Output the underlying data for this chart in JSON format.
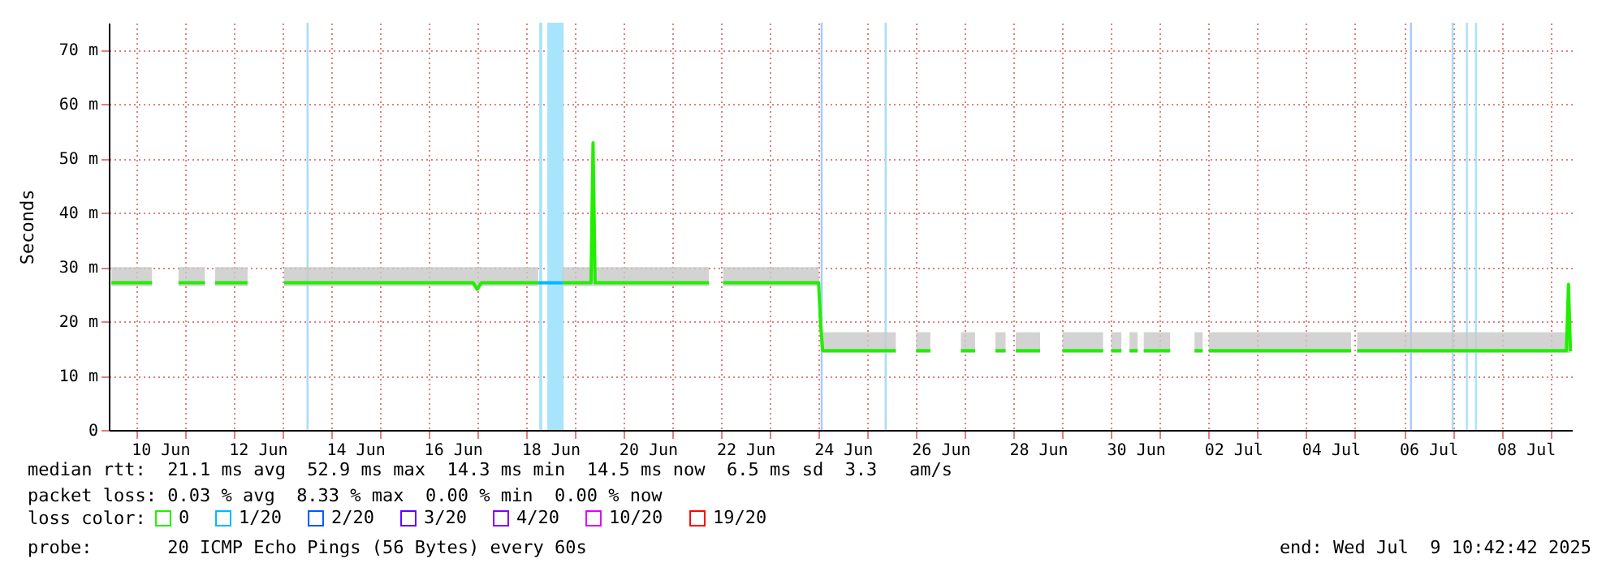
{
  "chart_data": {
    "type": "line",
    "ylabel": "Seconds",
    "legend_title": "loss color:",
    "legend": "bottom",
    "grid": true,
    "xlim": [
      "2025-06-09T10:42",
      "2025-07-09T10:42"
    ],
    "ylim": [
      0,
      75
    ],
    "yticks": [
      0,
      {
        "value": 10,
        "label": "10 m"
      },
      {
        "value": 20,
        "label": "20 m"
      },
      {
        "value": 30,
        "label": "30 m"
      },
      {
        "value": 40,
        "label": "40 m"
      },
      {
        "value": 50,
        "label": "50 m"
      },
      {
        "value": 60,
        "label": "60 m"
      },
      {
        "value": 70,
        "label": "70 m"
      }
    ],
    "xticks": [
      {
        "value": "2025-06-10T12:00",
        "label": "10 Jun"
      },
      {
        "value": "2025-06-12T12:00",
        "label": "12 Jun"
      },
      {
        "value": "2025-06-14T12:00",
        "label": "14 Jun"
      },
      {
        "value": "2025-06-16T12:00",
        "label": "16 Jun"
      },
      {
        "value": "2025-06-18T12:00",
        "label": "18 Jun"
      },
      {
        "value": "2025-06-20T12:00",
        "label": "20 Jun"
      },
      {
        "value": "2025-06-22T12:00",
        "label": "22 Jun"
      },
      {
        "value": "2025-06-24T12:00",
        "label": "24 Jun"
      },
      {
        "value": "2025-06-26T12:00",
        "label": "26 Jun"
      },
      {
        "value": "2025-06-28T12:00",
        "label": "28 Jun"
      },
      {
        "value": "2025-06-30T12:00",
        "label": "30 Jun"
      },
      {
        "value": "2025-07-02T12:00",
        "label": "02 Jul"
      },
      {
        "value": "2025-07-04T12:00",
        "label": "04 Jul"
      },
      {
        "value": "2025-07-06T12:00",
        "label": "06 Jul"
      },
      {
        "value": "2025-07-08T12:00",
        "label": "08 Jul"
      },
      {
        "value": "2025-06-10T00:00",
        "label": null
      },
      {
        "value": "2025-06-11T00:00",
        "label": null
      },
      {
        "value": "2025-06-12T00:00",
        "label": null
      },
      {
        "value": "2025-06-13T00:00",
        "label": null
      },
      {
        "value": "2025-06-14T00:00",
        "label": null
      },
      {
        "value": "2025-06-15T00:00",
        "label": null
      },
      {
        "value": "2025-06-16T00:00",
        "label": null
      },
      {
        "value": "2025-06-17T00:00",
        "label": null
      },
      {
        "value": "2025-06-18T00:00",
        "label": null
      },
      {
        "value": "2025-06-19T00:00",
        "label": null
      },
      {
        "value": "2025-06-20T00:00",
        "label": null
      },
      {
        "value": "2025-06-21T00:00",
        "label": null
      },
      {
        "value": "2025-06-22T00:00",
        "label": null
      },
      {
        "value": "2025-06-23T00:00",
        "label": null
      },
      {
        "value": "2025-06-24T00:00",
        "label": null
      },
      {
        "value": "2025-06-25T00:00",
        "label": null
      },
      {
        "value": "2025-06-26T00:00",
        "label": null
      },
      {
        "value": "2025-06-27T00:00",
        "label": null
      },
      {
        "value": "2025-06-28T00:00",
        "label": null
      },
      {
        "value": "2025-06-29T00:00",
        "label": null
      },
      {
        "value": "2025-06-30T00:00",
        "label": null
      },
      {
        "value": "2025-07-01T00:00",
        "label": null
      },
      {
        "value": "2025-07-02T00:00",
        "label": null
      },
      {
        "value": "2025-07-03T00:00",
        "label": null
      },
      {
        "value": "2025-07-04T00:00",
        "label": null
      },
      {
        "value": "2025-07-05T00:00",
        "label": null
      },
      {
        "value": "2025-07-06T00:00",
        "label": null
      },
      {
        "value": "2025-07-07T00:00",
        "label": null
      },
      {
        "value": "2025-07-08T00:00",
        "label": null
      },
      {
        "value": "2025-07-09T00:00",
        "label": null
      }
    ],
    "bands": [
      {
        "axis": "x",
        "from": "2025-06-13T12:00",
        "to": "2025-06-13T13:00",
        "color": "#a8def4"
      },
      {
        "axis": "x",
        "from": "2025-06-18T06:30",
        "to": "2025-06-18T08:00",
        "color": "#a8e4fb"
      },
      {
        "axis": "x",
        "from": "2025-06-18T10:30",
        "to": "2025-06-18T18:30",
        "color": "#a8e4fb"
      },
      {
        "axis": "x",
        "from": "2025-06-24T01:00",
        "to": "2025-06-24T02:00",
        "color": "#a8ccfb"
      },
      {
        "axis": "x",
        "from": "2025-06-25T08:30",
        "to": "2025-06-25T09:30",
        "color": "#a8def4"
      },
      {
        "axis": "x",
        "from": "2025-07-06T03:00",
        "to": "2025-07-06T04:00",
        "color": "#a8ccfb"
      },
      {
        "axis": "x",
        "from": "2025-07-06T23:30",
        "to": "2025-07-07T00:30",
        "color": "#a8def4"
      },
      {
        "axis": "x",
        "from": "2025-07-07T06:30",
        "to": "2025-07-07T07:30",
        "color": "#a8e4fb"
      },
      {
        "axis": "x",
        "from": "2025-07-07T11:00",
        "to": "2025-07-07T12:00",
        "color": "#a8e4fb"
      }
    ],
    "series": [
      {
        "name": "0",
        "color": "#22ee00",
        "x": [
          "2025-06-09T12:00",
          "2025-06-10T08:00",
          "2025-06-10T14:00",
          "2025-06-10T21:00",
          "2025-06-11T10:00",
          "2025-06-11T12:00",
          "2025-06-11T15:00",
          "2025-06-12T07:00",
          "2025-06-12T12:00",
          "2025-06-13T01:00",
          "2025-06-16T22:00",
          "2025-06-17T00:00",
          "2025-06-17T02:00",
          "2025-06-18T06:00",
          "2025-06-18T06:30",
          "2025-06-18T18:00",
          "2025-06-19T08:00",
          "2025-06-19T09:00",
          "2025-06-19T10:00",
          "2025-06-21T18:00",
          "2025-06-21T21:00",
          "2025-06-22T01:00",
          "2025-06-24T00:00",
          "2025-06-24T01:00",
          "2025-06-24T02:00",
          "2025-06-25T14:00",
          "2025-06-25T20:00",
          "2025-06-26T00:00",
          "2025-06-26T07:00",
          "2025-06-26T12:00",
          "2025-06-26T22:00",
          "2025-06-27T05:00",
          "2025-06-27T12:00",
          "2025-06-27T15:00",
          "2025-06-27T20:00",
          "2025-06-27T22:00",
          "2025-06-28T01:00",
          "2025-06-28T13:00",
          "2025-06-28T18:00",
          "2025-06-29T00:00",
          "2025-06-29T20:00",
          "2025-06-29T22:00",
          "2025-06-30T00:00",
          "2025-06-30T05:00",
          "2025-06-30T07:00",
          "2025-06-30T09:00",
          "2025-06-30T13:00",
          "2025-06-30T14:00",
          "2025-06-30T16:00",
          "2025-07-01T05:00",
          "2025-07-01T12:00",
          "2025-07-01T17:00",
          "2025-07-01T21:00",
          "2025-07-01T22:00",
          "2025-07-02T00:00",
          "2025-07-04T22:00",
          "2025-07-04T23:00",
          "2025-07-05T01:00",
          "2025-07-09T08:00",
          "2025-07-09T09:00",
          "2025-07-09T10:00"
        ],
        "values": [
          27.1,
          27.1,
          null,
          27.1,
          27.1,
          null,
          27.1,
          27.1,
          null,
          27.1,
          27.1,
          25.9,
          27.1,
          27.1,
          null,
          27.1,
          27.1,
          52.9,
          27.1,
          27.1,
          null,
          27.1,
          27.1,
          19.4,
          14.6,
          14.6,
          null,
          14.6,
          14.6,
          null,
          14.6,
          14.6,
          null,
          14.6,
          14.6,
          null,
          14.6,
          14.6,
          null,
          14.6,
          14.6,
          null,
          14.6,
          14.6,
          null,
          14.6,
          14.6,
          null,
          14.6,
          14.6,
          null,
          14.6,
          14.6,
          null,
          14.6,
          14.6,
          null,
          14.6,
          14.6,
          26.8,
          14.5
        ],
        "lower": [
          26.5,
          26.5,
          null,
          26.5,
          26.5,
          null,
          26.5,
          26.5,
          null,
          26.5,
          26.5,
          25.5,
          26.5,
          26.5,
          null,
          26.5,
          26.5,
          26.5,
          26.5,
          26.5,
          null,
          26.5,
          26.5,
          14.5,
          14.2,
          14.2,
          null,
          14.2,
          14.2,
          null,
          14.2,
          14.2,
          null,
          14.2,
          14.2,
          null,
          14.2,
          14.2,
          null,
          14.2,
          14.2,
          null,
          14.2,
          14.2,
          null,
          14.2,
          14.2,
          null,
          14.2,
          14.2,
          null,
          14.2,
          14.2,
          null,
          14.2,
          14.2,
          null,
          14.2,
          14.2,
          14.2,
          14.2
        ],
        "upper": [
          30,
          30,
          null,
          30,
          30,
          null,
          30,
          30,
          null,
          30,
          30,
          30,
          30,
          30,
          null,
          30,
          30,
          52.9,
          30,
          30,
          null,
          30,
          30,
          19.4,
          18,
          18,
          null,
          18,
          18,
          null,
          18,
          18,
          null,
          18,
          18,
          null,
          18,
          18,
          null,
          18,
          18,
          null,
          18,
          18,
          null,
          18,
          18,
          null,
          18,
          18,
          null,
          18,
          18,
          null,
          18,
          18,
          null,
          18,
          18,
          26.8,
          18
        ]
      },
      {
        "name": "1/20",
        "color": "#00b8ff",
        "x": [
          "2025-06-18T06:00",
          "2025-06-18T18:00"
        ],
        "values": [
          27.1,
          27.1
        ]
      },
      {
        "name": "2/20",
        "color": "#0059ff"
      },
      {
        "name": "3/20",
        "color": "#5e00ff"
      },
      {
        "name": "4/20",
        "color": "#7e00ff"
      },
      {
        "name": "10/20",
        "color": "#dd00ff"
      },
      {
        "name": "19/20",
        "color": "#ff0000"
      }
    ],
    "annotations": [
      "median rtt:  21.1 ms avg  52.9 ms max  14.3 ms min  14.5 ms now  6.5 ms sd  3.3   am/s",
      "packet loss: 0.03 % avg  8.33 % max  0.00 % min  0.00 % now",
      "probe:       20 ICMP Echo Pings (56 Bytes) every 60s",
      "end: Wed Jul  9 10:42:42 2025"
    ]
  }
}
